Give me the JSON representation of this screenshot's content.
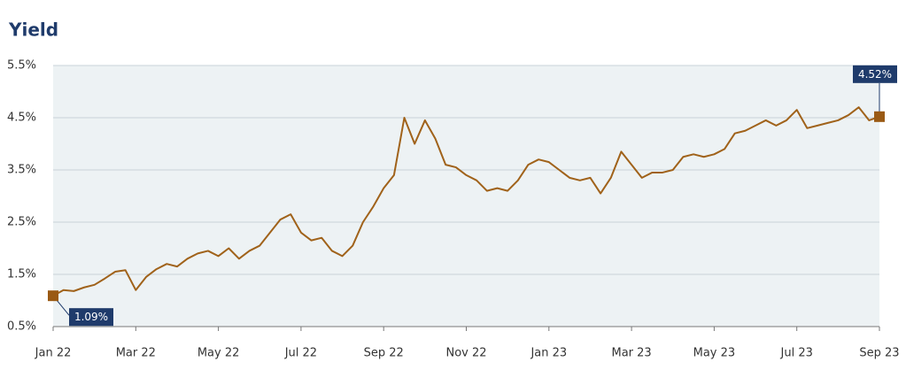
{
  "chart_data": {
    "type": "line",
    "title": "Yield",
    "categories": [
      "Jan 22",
      null,
      null,
      null,
      null,
      null,
      null,
      null,
      "Mar 22",
      null,
      null,
      null,
      null,
      null,
      null,
      null,
      "May 22",
      null,
      null,
      null,
      null,
      null,
      null,
      null,
      "Jul 22",
      null,
      null,
      null,
      null,
      null,
      null,
      null,
      "Sep 22",
      null,
      null,
      null,
      null,
      null,
      null,
      null,
      "Nov 22",
      null,
      null,
      null,
      null,
      null,
      null,
      null,
      "Jan 23",
      null,
      null,
      null,
      null,
      null,
      null,
      null,
      "Mar 23",
      null,
      null,
      null,
      null,
      null,
      null,
      null,
      "May 23",
      null,
      null,
      null,
      null,
      null,
      null,
      null,
      "Jul 23",
      null,
      null,
      null,
      null,
      null,
      null,
      null,
      "Sep 23"
    ],
    "series": [
      {
        "color": "#a0621a",
        "values": [
          1.09,
          1.2,
          1.18,
          1.25,
          1.3,
          1.42,
          1.55,
          1.58,
          1.2,
          1.45,
          1.6,
          1.7,
          1.65,
          1.8,
          1.9,
          1.95,
          1.85,
          2.0,
          1.8,
          1.95,
          2.05,
          2.3,
          2.55,
          2.65,
          2.3,
          2.15,
          2.2,
          1.95,
          1.85,
          2.05,
          2.5,
          2.8,
          3.15,
          3.4,
          4.5,
          4.0,
          4.45,
          4.1,
          3.6,
          3.55,
          3.4,
          3.3,
          3.1,
          3.15,
          3.1,
          3.3,
          3.6,
          3.7,
          3.65,
          3.5,
          3.35,
          3.3,
          3.35,
          3.05,
          3.35,
          3.85,
          3.6,
          3.35,
          3.45,
          3.45,
          3.5,
          3.75,
          3.8,
          3.75,
          3.8,
          3.9,
          4.2,
          4.25,
          4.35,
          4.45,
          4.35,
          4.45,
          4.65,
          4.3,
          4.35,
          4.4,
          4.45,
          4.55,
          4.7,
          4.45,
          4.52
        ],
        "value_labels": [
          "1.09%",
          null,
          null,
          null,
          null,
          null,
          null,
          null,
          null,
          null,
          null,
          null,
          null,
          null,
          null,
          null,
          null,
          null,
          null,
          null,
          null,
          null,
          null,
          null,
          null,
          null,
          null,
          null,
          null,
          null,
          null,
          null,
          null,
          null,
          null,
          null,
          null,
          null,
          null,
          null,
          null,
          null,
          null,
          null,
          null,
          null,
          null,
          null,
          null,
          null,
          null,
          null,
          null,
          null,
          null,
          null,
          null,
          null,
          null,
          null,
          null,
          null,
          null,
          null,
          null,
          null,
          null,
          null,
          null,
          null,
          null,
          null,
          null,
          null,
          null,
          null,
          null,
          null,
          null,
          null,
          "4.52%"
        ]
      }
    ],
    "ylim": [
      0.5,
      5.5
    ],
    "yticks": [
      {
        "value": 0.5,
        "label": "0.5%"
      },
      {
        "value": 1.5,
        "label": "1.5%"
      },
      {
        "value": 2.5,
        "label": "2.5%"
      },
      {
        "value": 3.5,
        "label": "3.5%"
      },
      {
        "value": 4.5,
        "label": "4.5%"
      },
      {
        "value": 5.5,
        "label": "5.5%"
      }
    ],
    "grid": true
  }
}
